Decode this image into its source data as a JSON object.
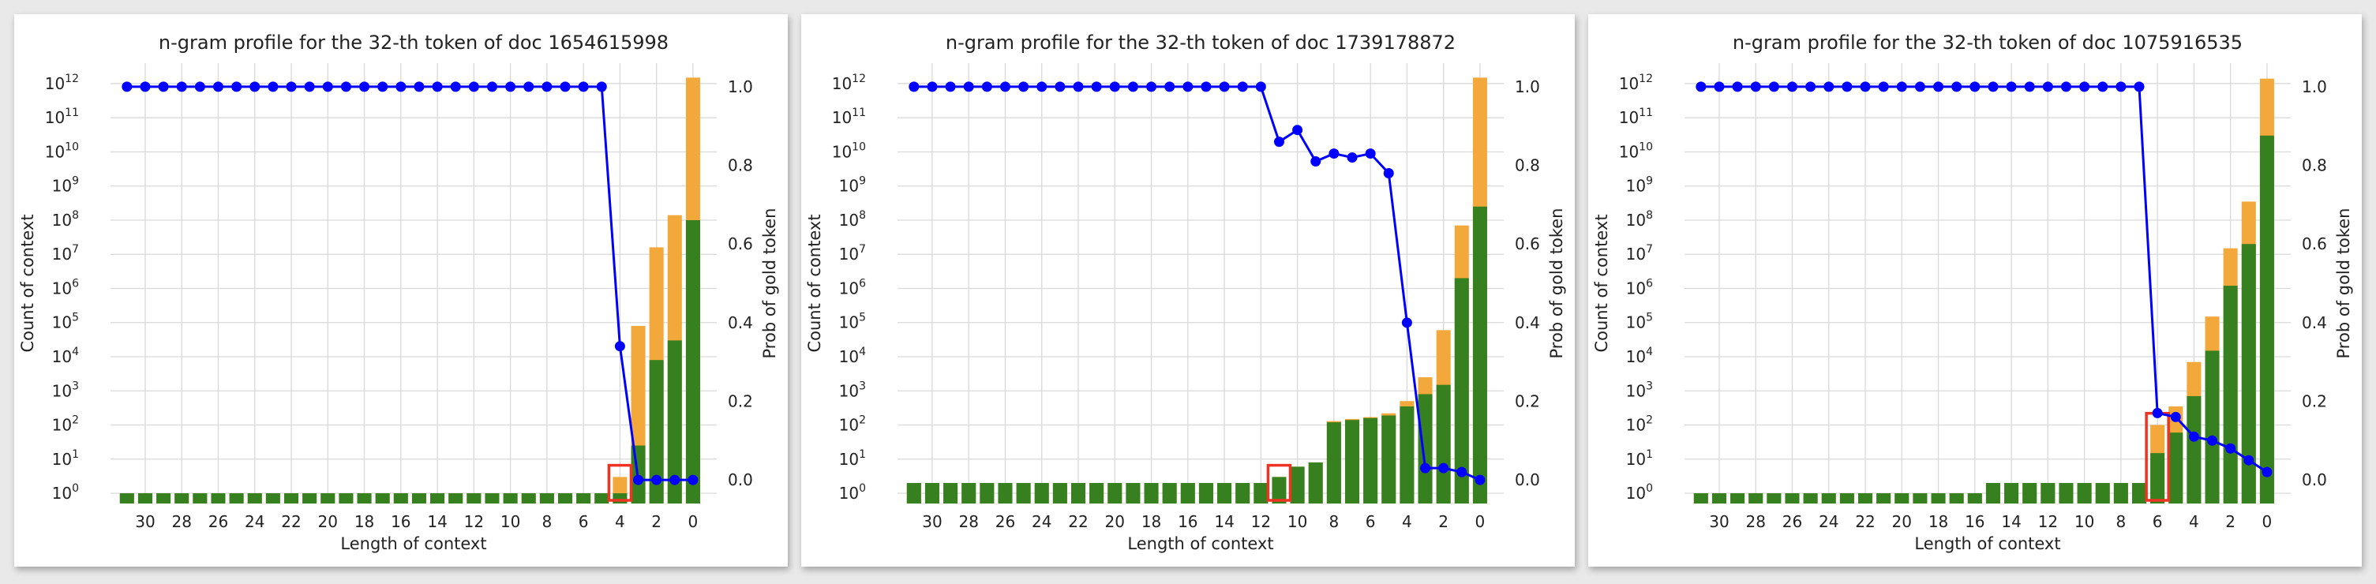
{
  "colors": {
    "gold_bar": "#f3a83b",
    "count_bar": "#37801f",
    "prob_line": "#0000ff",
    "highlight": "#ee3322",
    "grid": "#d9d9d9"
  },
  "chart_data": [
    {
      "type": "bar",
      "title": "n-gram profile for the 32-th token of doc 1654615998",
      "xlabel": "Length of context",
      "ylabel": "Count of context",
      "y2label": "Prob of gold token",
      "yscale": "log",
      "ylim_exp": [
        -0.3,
        12.6
      ],
      "y2lim": [
        -0.06,
        1.06
      ],
      "x": [
        31,
        30,
        29,
        28,
        27,
        26,
        25,
        24,
        23,
        22,
        21,
        20,
        19,
        18,
        17,
        16,
        15,
        14,
        13,
        12,
        11,
        10,
        9,
        8,
        7,
        6,
        5,
        4,
        3,
        2,
        1,
        0
      ],
      "x_ticks": [
        30,
        28,
        26,
        24,
        22,
        20,
        18,
        16,
        14,
        12,
        10,
        8,
        6,
        4,
        2,
        0
      ],
      "y_tick_exponents": [
        0,
        1,
        2,
        3,
        4,
        5,
        6,
        7,
        8,
        9,
        10,
        11,
        12
      ],
      "y2_ticks": [
        "0.0",
        "0.2",
        "0.4",
        "0.6",
        "0.8",
        "1.0"
      ],
      "series": [
        {
          "values": [
            1,
            1,
            1,
            1,
            1,
            1,
            1,
            1,
            1,
            1,
            1,
            1,
            1,
            1,
            1,
            1,
            1,
            1,
            1,
            1,
            1,
            1,
            1,
            1,
            1,
            1,
            1,
            3,
            80000.0,
            16000000.0,
            140000000.0,
            1500000000000.0
          ]
        },
        {
          "values": [
            1,
            1,
            1,
            1,
            1,
            1,
            1,
            1,
            1,
            1,
            1,
            1,
            1,
            1,
            1,
            1,
            1,
            1,
            1,
            1,
            1,
            1,
            1,
            1,
            1,
            1,
            1,
            1,
            25,
            8000.0,
            30000.0,
            100000000.0
          ]
        },
        {
          "values": [
            1,
            1,
            1,
            1,
            1,
            1,
            1,
            1,
            1,
            1,
            1,
            1,
            1,
            1,
            1,
            1,
            1,
            1,
            1,
            1,
            1,
            1,
            1,
            1,
            1,
            1,
            1,
            0.34,
            0.0,
            0.0,
            0.0,
            0.0
          ]
        }
      ],
      "highlight_x": 4
    },
    {
      "type": "bar",
      "title": "n-gram profile for the 32-th token of doc 1739178872",
      "xlabel": "Length of context",
      "ylabel": "Count of context",
      "y2label": "Prob of gold token",
      "yscale": "log",
      "ylim_exp": [
        -0.3,
        12.6
      ],
      "y2lim": [
        -0.06,
        1.06
      ],
      "x": [
        31,
        30,
        29,
        28,
        27,
        26,
        25,
        24,
        23,
        22,
        21,
        20,
        19,
        18,
        17,
        16,
        15,
        14,
        13,
        12,
        11,
        10,
        9,
        8,
        7,
        6,
        5,
        4,
        3,
        2,
        1,
        0
      ],
      "x_ticks": [
        30,
        28,
        26,
        24,
        22,
        20,
        18,
        16,
        14,
        12,
        10,
        8,
        6,
        4,
        2,
        0
      ],
      "y_tick_exponents": [
        0,
        1,
        2,
        3,
        4,
        5,
        6,
        7,
        8,
        9,
        10,
        11,
        12
      ],
      "y2_ticks": [
        "0.0",
        "0.2",
        "0.4",
        "0.6",
        "0.8",
        "1.0"
      ],
      "series": [
        {
          "values": [
            2,
            2,
            2,
            2,
            2,
            2,
            2,
            2,
            2,
            2,
            2,
            2,
            2,
            2,
            2,
            2,
            2,
            2,
            2,
            2,
            3,
            6,
            8,
            130,
            150,
            170,
            220,
            500,
            2500,
            60000.0,
            70000000.0,
            1500000000000.0
          ]
        },
        {
          "values": [
            2,
            2,
            2,
            2,
            2,
            2,
            2,
            2,
            2,
            2,
            2,
            2,
            2,
            2,
            2,
            2,
            2,
            2,
            2,
            2,
            3,
            6,
            8,
            120,
            140,
            160,
            190,
            350,
            800,
            1500.0,
            2000000.0,
            250000000.0
          ]
        },
        {
          "values": [
            1,
            1,
            1,
            1,
            1,
            1,
            1,
            1,
            1,
            1,
            1,
            1,
            1,
            1,
            1,
            1,
            1,
            1,
            1,
            1,
            0.86,
            0.89,
            0.81,
            0.83,
            0.82,
            0.83,
            0.78,
            0.4,
            0.03,
            0.03,
            0.02,
            0.0
          ]
        }
      ],
      "highlight_x": 11
    },
    {
      "type": "bar",
      "title": "n-gram profile for the 32-th token of doc 1075916535",
      "xlabel": "Length of context",
      "ylabel": "Count of context",
      "y2label": "Prob of gold token",
      "yscale": "log",
      "ylim_exp": [
        -0.3,
        12.6
      ],
      "y2lim": [
        -0.06,
        1.06
      ],
      "x": [
        31,
        30,
        29,
        28,
        27,
        26,
        25,
        24,
        23,
        22,
        21,
        20,
        19,
        18,
        17,
        16,
        15,
        14,
        13,
        12,
        11,
        10,
        9,
        8,
        7,
        6,
        5,
        4,
        3,
        2,
        1,
        0
      ],
      "x_ticks": [
        30,
        28,
        26,
        24,
        22,
        20,
        18,
        16,
        14,
        12,
        10,
        8,
        6,
        4,
        2,
        0
      ],
      "y_tick_exponents": [
        0,
        1,
        2,
        3,
        4,
        5,
        6,
        7,
        8,
        9,
        10,
        11,
        12
      ],
      "y2_ticks": [
        "0.0",
        "0.2",
        "0.4",
        "0.6",
        "0.8",
        "1.0"
      ],
      "series": [
        {
          "values": [
            1,
            1,
            1,
            1,
            1,
            1,
            1,
            1,
            1,
            1,
            1,
            1,
            1,
            1,
            1,
            1,
            2,
            2,
            2,
            2,
            2,
            2,
            2,
            2,
            2,
            100,
            350,
            7000.0,
            150000.0,
            15000000.0,
            350000000.0,
            1400000000000.0
          ]
        },
        {
          "values": [
            1,
            1,
            1,
            1,
            1,
            1,
            1,
            1,
            1,
            1,
            1,
            1,
            1,
            1,
            1,
            1,
            2,
            2,
            2,
            2,
            2,
            2,
            2,
            2,
            2,
            15,
            60,
            700,
            15000.0,
            1200000.0,
            20000000.0,
            30000000000.0
          ]
        },
        {
          "values": [
            1,
            1,
            1,
            1,
            1,
            1,
            1,
            1,
            1,
            1,
            1,
            1,
            1,
            1,
            1,
            1,
            1,
            1,
            1,
            1,
            1,
            1,
            1,
            1,
            1,
            0.17,
            0.16,
            0.11,
            0.1,
            0.08,
            0.05,
            0.02
          ]
        }
      ],
      "highlight_x": 6
    }
  ]
}
